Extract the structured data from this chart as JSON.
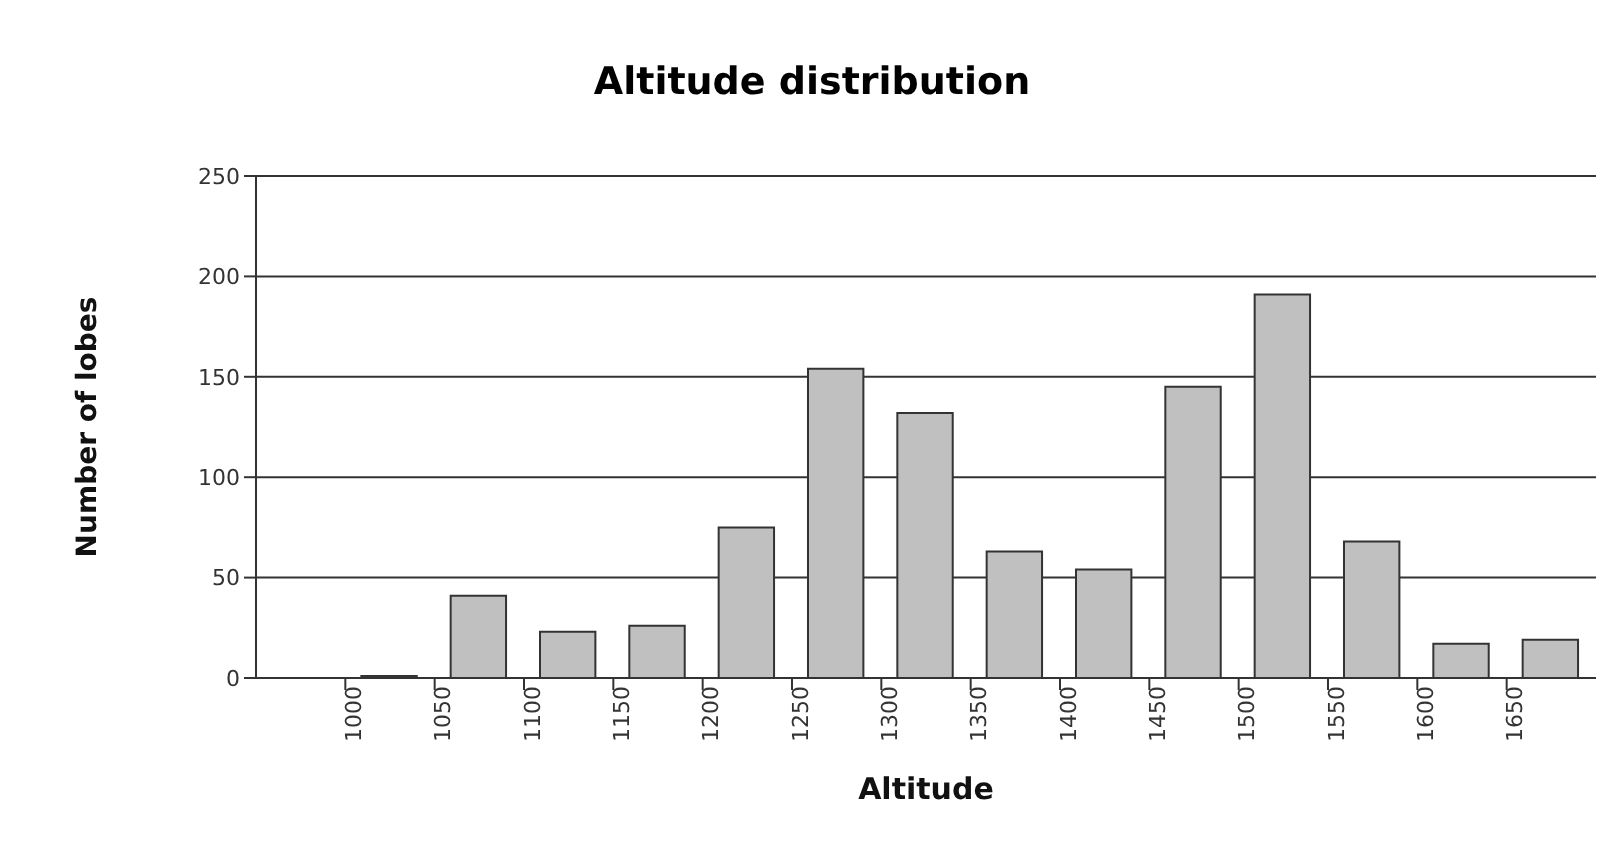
{
  "chart_data": {
    "type": "histogram",
    "title": "Altitude distribution",
    "xlabel": "Altitude",
    "ylabel": "Number of lobes",
    "bins": [
      1000,
      1050,
      1100,
      1150,
      1200,
      1250,
      1300,
      1350,
      1400,
      1450,
      1500,
      1550,
      1600,
      1650,
      1700
    ],
    "values": [
      1,
      41,
      23,
      26,
      75,
      154,
      132,
      63,
      54,
      145,
      191,
      68,
      17,
      19
    ],
    "color": "#c0c0c0",
    "xlim": [
      950,
      1700
    ],
    "xticks": [
      1000,
      1050,
      1100,
      1150,
      1200,
      1250,
      1300,
      1350,
      1400,
      1450,
      1500,
      1550,
      1600,
      1650
    ],
    "ylim": [
      0,
      250
    ],
    "yticks": [
      0,
      50,
      100,
      150,
      200,
      250
    ],
    "grid": "y"
  }
}
